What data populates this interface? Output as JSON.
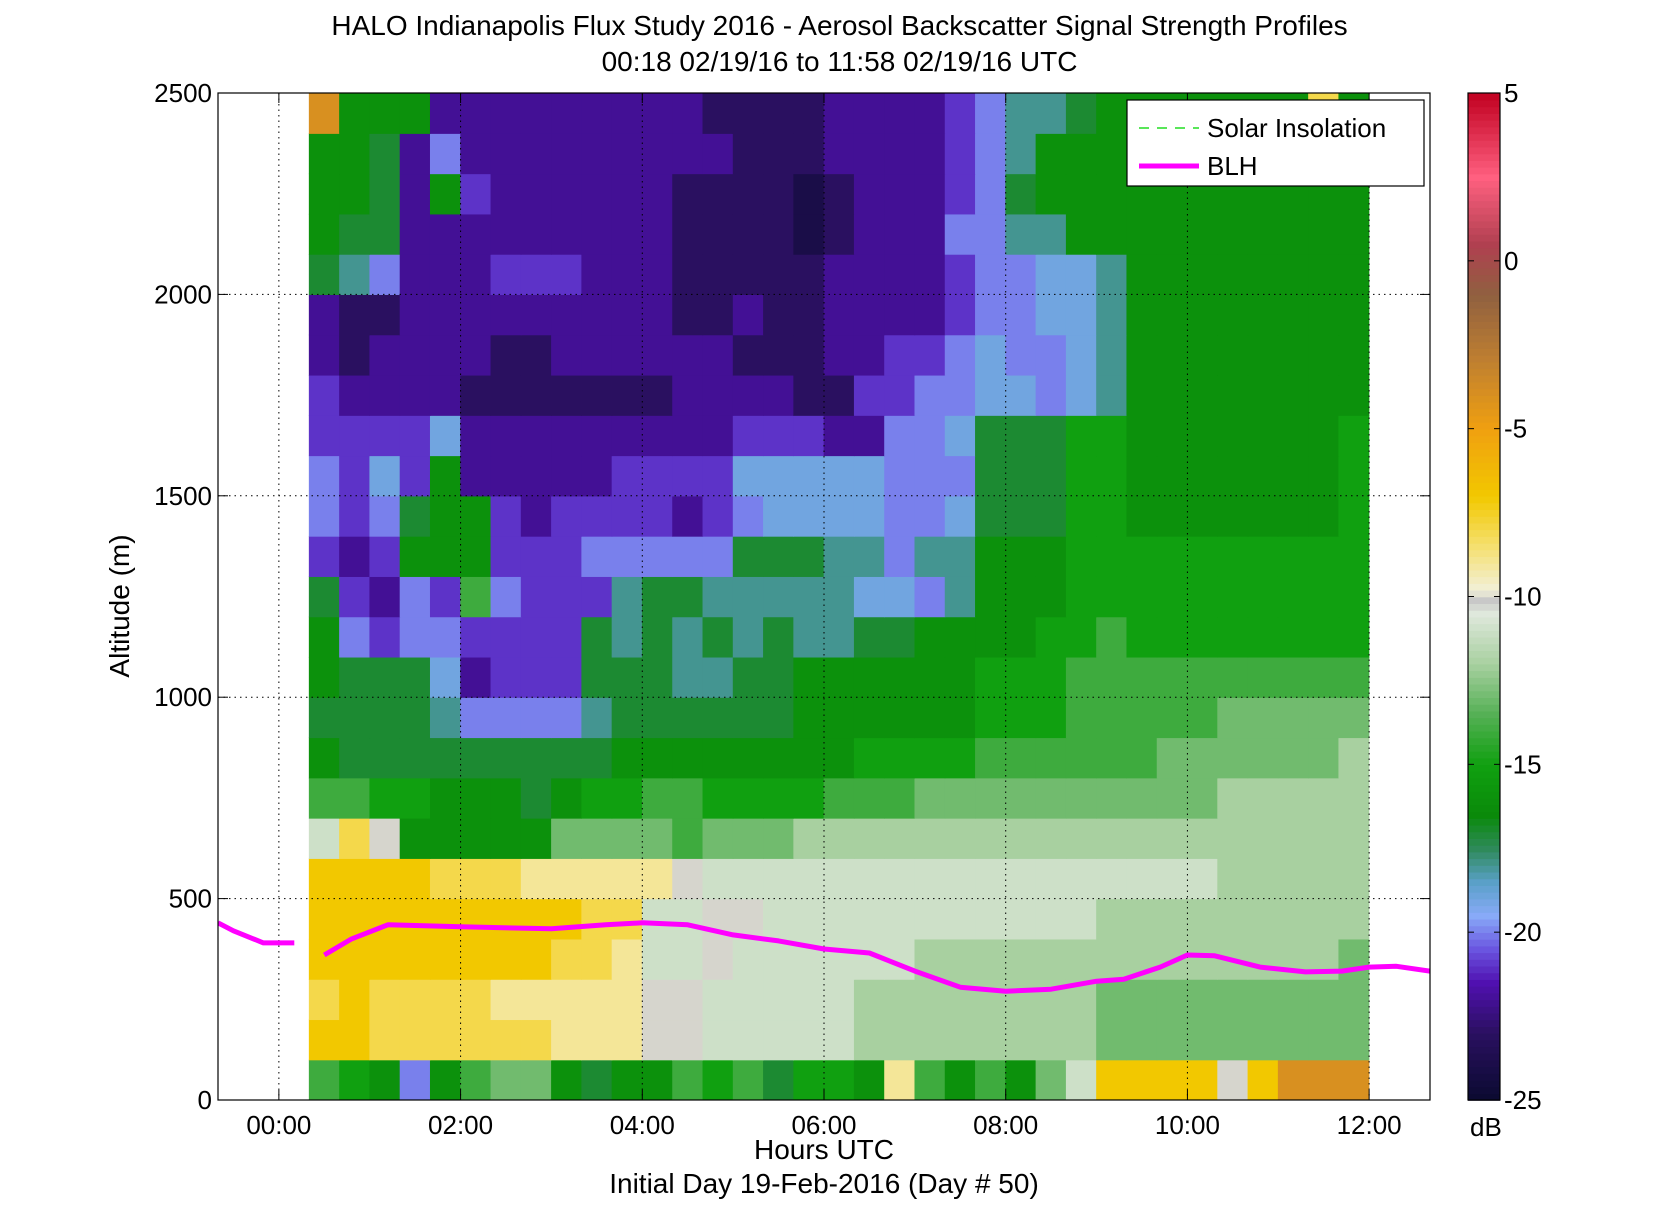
{
  "chart_data": {
    "type": "heatmap",
    "title": "HALO Indianapolis Flux Study 2016 - Aerosol Backscatter Signal Strength Profiles",
    "subtitle": "00:18 02/19/16 to 11:58 02/19/16  UTC",
    "xlabel": "Hours UTC",
    "xlabel2": "Initial Day 19-Feb-2016 (Day # 50)",
    "ylabel": "Altitude (m)",
    "xlim": [
      -0.67,
      12.67
    ],
    "ylim": [
      0,
      2500
    ],
    "x_ticks": [
      0,
      2,
      4,
      6,
      8,
      10,
      12
    ],
    "x_tick_labels": [
      "00:00",
      "02:00",
      "04:00",
      "06:00",
      "08:00",
      "10:00",
      "12:00"
    ],
    "y_ticks": [
      0,
      500,
      1000,
      1500,
      2000,
      2500
    ],
    "y_tick_labels": [
      "0",
      "500",
      "1000",
      "1500",
      "2000",
      "2500"
    ],
    "grid": "dotted",
    "colorbar": {
      "range": [
        -25,
        5
      ],
      "ticks": [
        5,
        0,
        -5,
        -10,
        -15,
        -20,
        -25
      ],
      "tick_labels": [
        "5",
        "0",
        "-5",
        "-10",
        "-15",
        "-20",
        "-25"
      ],
      "unit_label": "dB"
    },
    "legend": {
      "placement": "top-right",
      "entries": [
        {
          "name": "Solar Insolation",
          "color": "#22dd22",
          "style": "dashed"
        },
        {
          "name": "BLH",
          "color": "#ff00ff",
          "style": "solid"
        }
      ]
    },
    "heatmap": {
      "x_start": 0.33,
      "x_step": 0.3333,
      "y_start": 0,
      "y_step": 100,
      "n_cols": 35,
      "n_rows": 25,
      "description_of_values": "dB per cell",
      "values": [
        [
          -14,
          -15,
          -16,
          -20,
          -16,
          -14,
          -13,
          -13,
          -16,
          -17,
          -16,
          -16,
          -14,
          -15,
          -14,
          -17,
          -15,
          -15,
          -16,
          -9,
          -14,
          -16,
          -14,
          -16,
          -13,
          -11,
          -7,
          -7,
          -7,
          -7,
          -10,
          -7,
          -4,
          -4,
          -4
        ],
        [
          -7,
          -7,
          -8,
          -8,
          -8,
          -8,
          -8,
          -8,
          -9,
          -9,
          -9,
          -10,
          -10,
          -11,
          -11,
          -11,
          -11,
          -11,
          -12,
          -12,
          -12,
          -12,
          -12,
          -12,
          -12,
          -12,
          -13,
          -13,
          -13,
          -13,
          -13,
          -13,
          -13,
          -13,
          -13
        ],
        [
          -8,
          -7,
          -8,
          -8,
          -8,
          -8,
          -9,
          -9,
          -9,
          -9,
          -9,
          -10,
          -10,
          -11,
          -11,
          -11,
          -11,
          -11,
          -12,
          -12,
          -12,
          -12,
          -12,
          -12,
          -12,
          -12,
          -13,
          -13,
          -13,
          -13,
          -13,
          -13,
          -13,
          -13,
          -13
        ],
        [
          -7,
          -7,
          -7,
          -7,
          -7,
          -7,
          -7,
          -7,
          -8,
          -8,
          -9,
          -11,
          -11,
          -10,
          -11,
          -11,
          -11,
          -11,
          -11,
          -11,
          -12,
          -12,
          -12,
          -12,
          -12,
          -12,
          -12,
          -12,
          -12,
          -12,
          -12,
          -12,
          -12,
          -12,
          -13
        ],
        [
          -7,
          -7,
          -7,
          -7,
          -7,
          -7,
          -7,
          -7,
          -7,
          -8,
          -8,
          -11,
          -11,
          -10,
          -10,
          -11,
          -11,
          -11,
          -11,
          -11,
          -11,
          -11,
          -11,
          -11,
          -11,
          -11,
          -12,
          -12,
          -12,
          -12,
          -12,
          -12,
          -12,
          -12,
          -12
        ],
        [
          -7,
          -7,
          -7,
          -7,
          -8,
          -8,
          -8,
          -9,
          -9,
          -9,
          -9,
          -9,
          -10,
          -11,
          -11,
          -11,
          -11,
          -11,
          -11,
          -11,
          -11,
          -11,
          -11,
          -11,
          -11,
          -11,
          -11,
          -11,
          -11,
          -11,
          -12,
          -12,
          -12,
          -12,
          -12
        ],
        [
          -11,
          -8,
          -10,
          -16,
          -16,
          -16,
          -16,
          -16,
          -13,
          -13,
          -13,
          -13,
          -14,
          -13,
          -13,
          -13,
          -12,
          -12,
          -12,
          -12,
          -12,
          -12,
          -12,
          -12,
          -12,
          -12,
          -12,
          -12,
          -12,
          -12,
          -12,
          -12,
          -12,
          -12,
          -12
        ],
        [
          -14,
          -14,
          -15,
          -15,
          -16,
          -16,
          -16,
          -17,
          -16,
          -15,
          -15,
          -14,
          -14,
          -15,
          -15,
          -15,
          -15,
          -14,
          -14,
          -14,
          -13,
          -13,
          -13,
          -13,
          -13,
          -13,
          -13,
          -13,
          -13,
          -13,
          -12,
          -12,
          -12,
          -12,
          -12
        ],
        [
          -16,
          -17,
          -17,
          -17,
          -17,
          -17,
          -17,
          -17,
          -17,
          -17,
          -16,
          -16,
          -16,
          -16,
          -16,
          -16,
          -16,
          -16,
          -15,
          -15,
          -15,
          -15,
          -14,
          -14,
          -14,
          -14,
          -14,
          -14,
          -13,
          -13,
          -13,
          -13,
          -13,
          -13,
          -12
        ],
        [
          -17,
          -17,
          -17,
          -17,
          -18,
          -20,
          -20,
          -20,
          -20,
          -18,
          -17,
          -17,
          -17,
          -17,
          -17,
          -17,
          -16,
          -16,
          -16,
          -16,
          -16,
          -16,
          -15,
          -15,
          -15,
          -14,
          -14,
          -14,
          -14,
          -14,
          -13,
          -13,
          -13,
          -13,
          -13
        ],
        [
          -16,
          -17,
          -17,
          -17,
          -19,
          -22,
          -21,
          -21,
          -21,
          -17,
          -17,
          -17,
          -18,
          -18,
          -17,
          -17,
          -16,
          -16,
          -16,
          -16,
          -16,
          -16,
          -15,
          -15,
          -15,
          -14,
          -14,
          -14,
          -14,
          -14,
          -14,
          -14,
          -14,
          -14,
          -14
        ],
        [
          -16,
          -20,
          -21,
          -20,
          -20,
          -21,
          -21,
          -21,
          -21,
          -17,
          -18,
          -17,
          -18,
          -17,
          -18,
          -17,
          -18,
          -18,
          -17,
          -17,
          -16,
          -16,
          -16,
          -16,
          -15,
          -15,
          -14,
          -15,
          -15,
          -15,
          -15,
          -15,
          -15,
          -15,
          -15
        ],
        [
          -17,
          -21,
          -22,
          -20,
          -21,
          -14,
          -20,
          -21,
          -21,
          -21,
          -18,
          -17,
          -17,
          -18,
          -18,
          -18,
          -18,
          -18,
          -19,
          -19,
          -20,
          -18,
          -16,
          -16,
          -16,
          -15,
          -15,
          -15,
          -15,
          -15,
          -15,
          -15,
          -15,
          -15,
          -15
        ],
        [
          -21,
          -22,
          -21,
          -16,
          -16,
          -16,
          -21,
          -21,
          -21,
          -20,
          -20,
          -20,
          -20,
          -20,
          -17,
          -17,
          -17,
          -18,
          -18,
          -20,
          -18,
          -18,
          -16,
          -16,
          -16,
          -15,
          -15,
          -15,
          -15,
          -15,
          -15,
          -15,
          -15,
          -15,
          -15
        ],
        [
          -20,
          -21,
          -20,
          -17,
          -16,
          -16,
          -21,
          -22,
          -21,
          -21,
          -21,
          -21,
          -22,
          -21,
          -20,
          -19,
          -19,
          -19,
          -19,
          -20,
          -20,
          -19,
          -17,
          -17,
          -17,
          -15,
          -15,
          -16,
          -16,
          -16,
          -16,
          -16,
          -16,
          -16,
          -15
        ],
        [
          -20,
          -21,
          -19,
          -21,
          -16,
          -22,
          -22,
          -22,
          -22,
          -22,
          -21,
          -21,
          -21,
          -21,
          -19,
          -19,
          -19,
          -19,
          -19,
          -20,
          -20,
          -20,
          -17,
          -17,
          -17,
          -15,
          -15,
          -16,
          -16,
          -16,
          -16,
          -16,
          -16,
          -16,
          -15
        ],
        [
          -21,
          -21,
          -21,
          -21,
          -19,
          -22,
          -22,
          -22,
          -22,
          -22,
          -22,
          -22,
          -22,
          -22,
          -21,
          -21,
          -21,
          -22,
          -22,
          -20,
          -20,
          -19,
          -17,
          -17,
          -17,
          -15,
          -15,
          -16,
          -16,
          -16,
          -16,
          -16,
          -16,
          -16,
          -15
        ],
        [
          -21,
          -22,
          -22,
          -22,
          -22,
          -23,
          -23,
          -23,
          -23,
          -23,
          -23,
          -23,
          -22,
          -22,
          -22,
          -22,
          -23,
          -23,
          -21,
          -21,
          -20,
          -20,
          -19,
          -19,
          -20,
          -19,
          -18,
          -16,
          -16,
          -16,
          -16,
          -16,
          -16,
          -16,
          -16
        ],
        [
          -22,
          -23,
          -22,
          -22,
          -22,
          -22,
          -23,
          -23,
          -22,
          -22,
          -22,
          -22,
          -22,
          -22,
          -23,
          -23,
          -23,
          -22,
          -22,
          -21,
          -21,
          -20,
          -19,
          -20,
          -20,
          -19,
          -18,
          -16,
          -16,
          -16,
          -16,
          -16,
          -16,
          -16,
          -16
        ],
        [
          -22,
          -23,
          -23,
          -22,
          -22,
          -22,
          -22,
          -22,
          -22,
          -22,
          -22,
          -22,
          -23,
          -23,
          -22,
          -23,
          -23,
          -22,
          -22,
          -22,
          -22,
          -21,
          -20,
          -20,
          -19,
          -19,
          -18,
          -16,
          -16,
          -16,
          -16,
          -16,
          -16,
          -16,
          -16
        ],
        [
          -17,
          -18,
          -20,
          -22,
          -22,
          -22,
          -21,
          -21,
          -21,
          -22,
          -22,
          -22,
          -23,
          -23,
          -23,
          -23,
          -23,
          -22,
          -22,
          -22,
          -22,
          -21,
          -20,
          -20,
          -19,
          -19,
          -18,
          -16,
          -16,
          -16,
          -16,
          -16,
          -16,
          -16,
          -16
        ],
        [
          -16,
          -17,
          -17,
          -22,
          -22,
          -22,
          -22,
          -22,
          -22,
          -22,
          -22,
          -22,
          -23,
          -23,
          -23,
          -23,
          -24,
          -23,
          -22,
          -22,
          -22,
          -20,
          -20,
          -18,
          -18,
          -16,
          -16,
          -16,
          -16,
          -16,
          -16,
          -16,
          -16,
          -16,
          -16
        ],
        [
          -16,
          -16,
          -17,
          -22,
          -16,
          -21,
          -22,
          -22,
          -22,
          -22,
          -22,
          -22,
          -23,
          -23,
          -23,
          -23,
          -24,
          -23,
          -22,
          -22,
          -22,
          -21,
          -20,
          -17,
          -16,
          -16,
          -16,
          -16,
          -16,
          -16,
          -16,
          -16,
          -16,
          -16,
          -16
        ],
        [
          -16,
          -16,
          -17,
          -22,
          -20,
          -22,
          -22,
          -22,
          -22,
          -22,
          -22,
          -22,
          -22,
          -22,
          -23,
          -23,
          -23,
          -22,
          -22,
          -22,
          -22,
          -21,
          -20,
          -18,
          -16,
          -16,
          -16,
          -16,
          -16,
          -16,
          -16,
          -16,
          -16,
          -15,
          -15
        ],
        [
          -4,
          -16,
          -16,
          -16,
          -22,
          -22,
          -22,
          -22,
          -22,
          -22,
          -22,
          -22,
          -22,
          -23,
          -23,
          -23,
          -23,
          -22,
          -22,
          -22,
          -22,
          -21,
          -20,
          -18,
          -18,
          -17,
          -16,
          -16,
          -16,
          -16,
          -16,
          -16,
          -16,
          -8,
          -16
        ]
      ]
    },
    "series": [
      {
        "name": "BLH",
        "segments": [
          {
            "x": [
              -0.67,
              -0.5,
              -0.17,
              0.17
            ],
            "y": [
              440,
              420,
              390,
              390
            ]
          },
          {
            "x": [
              0.5,
              0.8,
              1.2,
              2.0,
              3.0,
              3.6,
              4.0,
              4.5,
              5.0,
              5.5,
              6.0,
              6.5,
              7.0,
              7.5,
              8.0,
              8.5,
              9.0,
              9.3,
              9.7,
              10.0,
              10.3,
              10.8,
              11.3,
              11.7,
              12.0,
              12.3,
              12.67
            ],
            "y": [
              360,
              400,
              435,
              430,
              425,
              435,
              440,
              435,
              410,
              395,
              375,
              365,
              320,
              280,
              270,
              275,
              295,
              300,
              330,
              360,
              358,
              330,
              318,
              320,
              330,
              332,
              320
            ]
          }
        ]
      }
    ]
  }
}
